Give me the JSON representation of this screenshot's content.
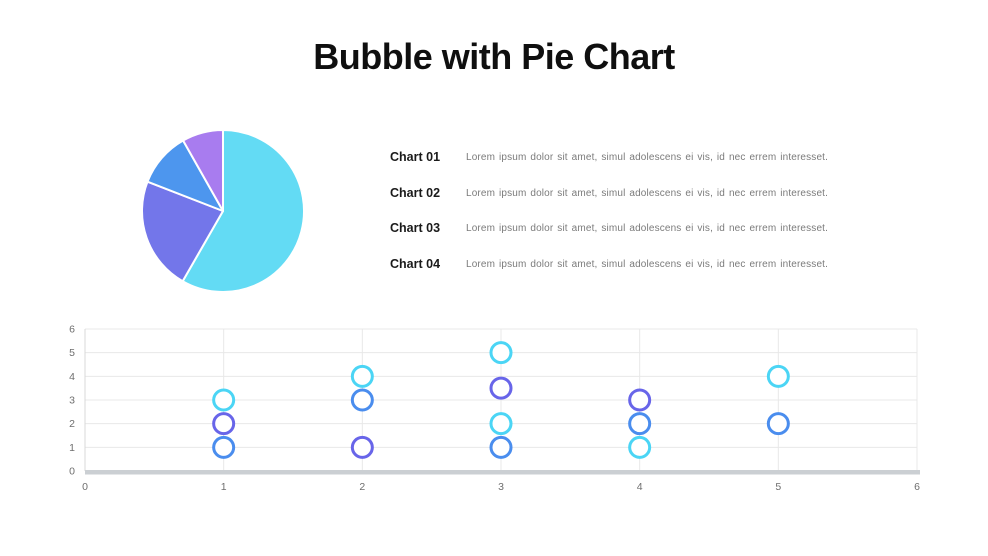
{
  "page": {
    "title": "Bubble with Pie Chart",
    "background_color": "#ffffff"
  },
  "legend": {
    "items": [
      {
        "label": "Chart 01",
        "description": "Lorem ipsum dolor sit amet, simul adolescens ei vis, id nec errem interesset."
      },
      {
        "label": "Chart 02",
        "description": "Lorem ipsum dolor sit amet, simul adolescens ei vis, id nec errem interesset."
      },
      {
        "label": "Chart 03",
        "description": "Lorem ipsum dolor sit amet, simul adolescens ei vis, id nec errem interesset."
      },
      {
        "label": "Chart 04",
        "description": "Lorem ipsum dolor sit amet, simul adolescens ei vis, id nec errem interesset."
      }
    ]
  },
  "chart_data": [
    {
      "type": "pie",
      "title": "",
      "labels": [
        "Chart 01",
        "Chart 02",
        "Chart 03",
        "Chart 04"
      ],
      "values": [
        58.3,
        22.6,
        10.9,
        8.2
      ],
      "colors": [
        "#63DBF4",
        "#7376EA",
        "#4D96EE",
        "#A87CEF"
      ],
      "start_angle_deg": 0,
      "direction": "clockwise",
      "separator_color": "#ffffff",
      "legend_position": "right"
    },
    {
      "type": "scatter",
      "subtype": "bubble",
      "title": "",
      "xlabel": "",
      "ylabel": "",
      "xlim": [
        0,
        6
      ],
      "ylim": [
        0,
        6
      ],
      "x_ticks": [
        0,
        1,
        2,
        3,
        4,
        5,
        6
      ],
      "y_ticks": [
        0,
        1,
        2,
        3,
        4,
        5,
        6
      ],
      "grid": true,
      "gridline_color": "#e8e8e8",
      "axis_line_color": "#d9d9d9",
      "baseline_bar_color": "#cbcfd3",
      "tick_label_color": "#6e6e6e",
      "bubble_fill": "#ffffff",
      "bubble_radius": 10,
      "bubble_stroke_width": 3,
      "series": [
        {
          "name": "cyan-series",
          "color": "#4BD5F5",
          "points": [
            [
              1,
              3
            ],
            [
              2,
              4
            ],
            [
              3,
              5
            ],
            [
              3,
              2
            ],
            [
              4,
              1
            ],
            [
              5,
              4
            ]
          ]
        },
        {
          "name": "blue-series",
          "color": "#4A8DEE",
          "points": [
            [
              1,
              1
            ],
            [
              2,
              3
            ],
            [
              3,
              1
            ],
            [
              4,
              2
            ],
            [
              5,
              2
            ]
          ]
        },
        {
          "name": "indigo-series",
          "color": "#6865E9",
          "points": [
            [
              1,
              2
            ],
            [
              2,
              1
            ],
            [
              3,
              3.5
            ],
            [
              4,
              3
            ]
          ]
        }
      ]
    }
  ]
}
